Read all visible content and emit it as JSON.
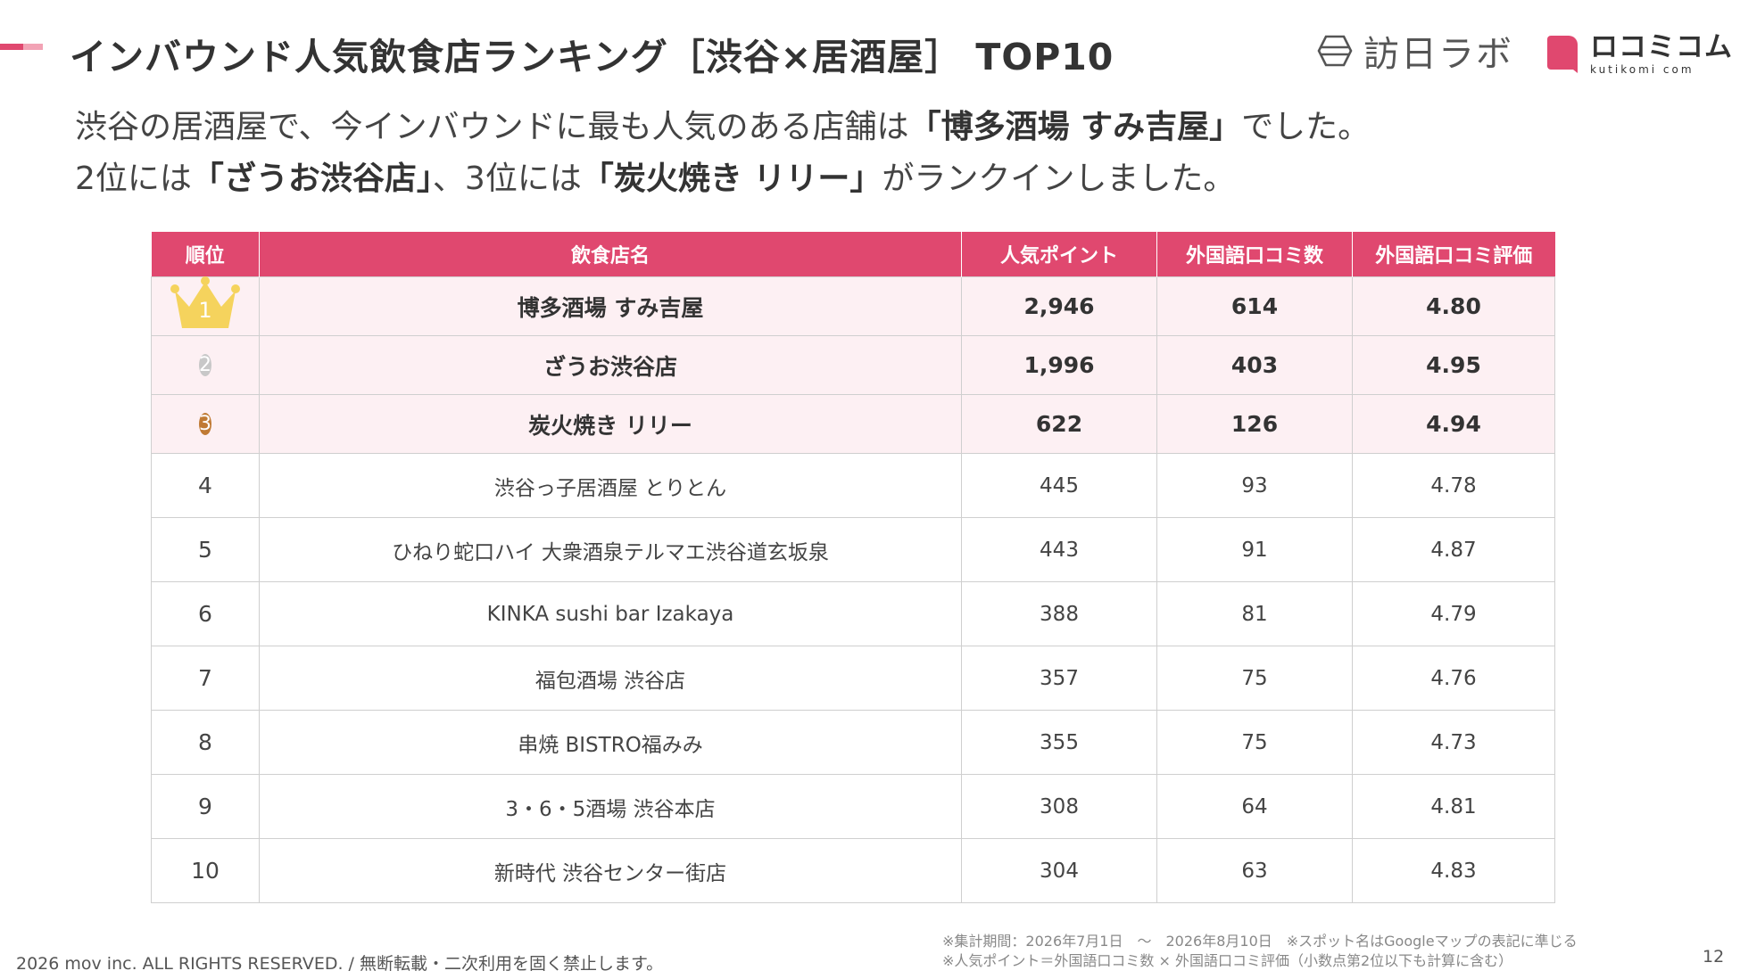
{
  "colors": {
    "accent": "#e0486f",
    "accent_light": "#f2a3b5",
    "header_bg": "#e0486f",
    "top_row_bg": "#fdf0f3",
    "gold": "#f5d35d",
    "silver": "#c8c8c8",
    "bronze": "#c07a34",
    "logo_red": "#e0486f"
  },
  "header": {
    "title": "インバウンド人気飲食店ランキング［渋谷×居酒屋］ TOP10"
  },
  "logos": {
    "houmon": {
      "icon": "hexagon-logo-icon",
      "text": "訪日ラボ"
    },
    "kuchikomi": {
      "icon": "speech-bubble-logo-icon",
      "text": "ロコミコム",
      "subtext": "kutikomi com"
    }
  },
  "lead": {
    "line1": {
      "pre": "渋谷の居酒屋で、今インバウンドに最も人気のある店舗は",
      "highlight": "「博多酒場 すみ吉屋」",
      "post": "でした。"
    },
    "line2": {
      "pre": "2位には",
      "highlight1": "「ざうお渋谷店」",
      "mid": "、3位には",
      "highlight2": "「炭火焼き リリー」",
      "post": "がランクインしました。"
    }
  },
  "table": {
    "columns": [
      "順位",
      "飲食店名",
      "人気ポイント",
      "外国語口コミ数",
      "外国語口コミ評価"
    ],
    "rows": [
      {
        "rank": "1",
        "name": "博多酒場 すみ吉屋",
        "points": "2,946",
        "reviews": "614",
        "rating": "4.80"
      },
      {
        "rank": "2",
        "name": "ざうお渋谷店",
        "points": "1,996",
        "reviews": "403",
        "rating": "4.95"
      },
      {
        "rank": "3",
        "name": "炭火焼き リリー",
        "points": "622",
        "reviews": "126",
        "rating": "4.94"
      },
      {
        "rank": "4",
        "name": "渋谷っ子居酒屋 とりとん",
        "points": "445",
        "reviews": "93",
        "rating": "4.78"
      },
      {
        "rank": "5",
        "name": "ひねり蛇口ハイ 大衆酒泉テルマエ渋谷道玄坂泉",
        "points": "443",
        "reviews": "91",
        "rating": "4.87"
      },
      {
        "rank": "6",
        "name": "KINKA sushi bar Izakaya",
        "points": "388",
        "reviews": "81",
        "rating": "4.79"
      },
      {
        "rank": "7",
        "name": "福包酒場 渋谷店",
        "points": "357",
        "reviews": "75",
        "rating": "4.76"
      },
      {
        "rank": "8",
        "name": "串焼 BISTRO福みみ",
        "points": "355",
        "reviews": "75",
        "rating": "4.73"
      },
      {
        "rank": "9",
        "name": "3・6・5酒場 渋谷本店",
        "points": "308",
        "reviews": "64",
        "rating": "4.81"
      },
      {
        "rank": "10",
        "name": "新時代 渋谷センター街店",
        "points": "304",
        "reviews": "63",
        "rating": "4.83"
      }
    ]
  },
  "footer": {
    "copyright": "2026 mov inc. ALL RIGHTS RESERVED. / 無断転載・二次利用を固く禁止します。",
    "note1": "※集計期間：2026年7月1日　〜　2026年8月10日　※スポット名はGoogleマップの表記に準じる",
    "note2": "※人気ポイント＝外国語口コミ数 × 外国語口コミ評価（小数点第2位以下も計算に含む）",
    "page": "12"
  }
}
